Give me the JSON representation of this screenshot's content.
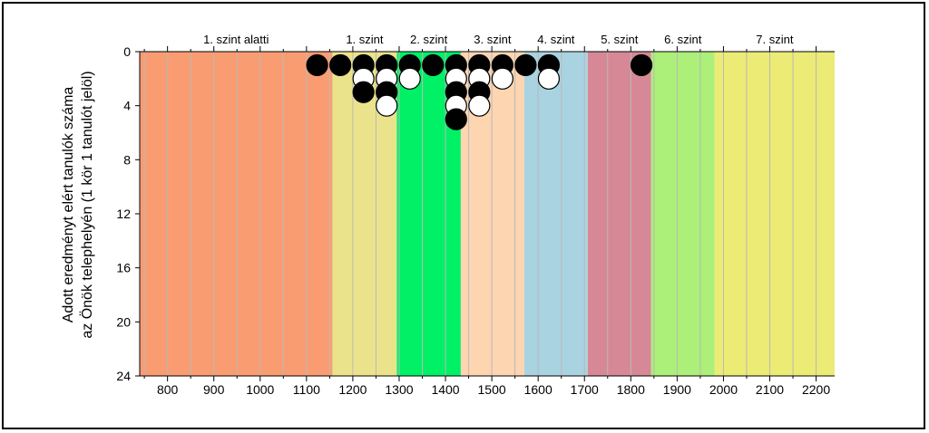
{
  "chart_data": {
    "type": "scatter",
    "xlim": [
      740,
      2240
    ],
    "ylim": [
      0,
      24
    ],
    "y_inverted": true,
    "ylabel_lines": [
      "Adott eredményt elért tanulók száma",
      "az Önök telephelyén (1 kör 1 tanulót jelöl)"
    ],
    "x_ticks": [
      800,
      900,
      1000,
      1100,
      1200,
      1300,
      1400,
      1500,
      1600,
      1700,
      1800,
      1900,
      2000,
      2100,
      2200
    ],
    "y_ticks": [
      0,
      4,
      8,
      12,
      16,
      20,
      24
    ],
    "x_minor_step": 50,
    "grid": true,
    "levels": [
      {
        "name": "1. szint alatti",
        "from": 740,
        "to": 1156,
        "color": "#fa9c72"
      },
      {
        "name": "1. szint",
        "from": 1156,
        "to": 1295,
        "color": "#ebe28c"
      },
      {
        "name": "2. szint",
        "from": 1295,
        "to": 1433,
        "color": "#00f066"
      },
      {
        "name": "3. szint",
        "from": 1433,
        "to": 1570,
        "color": "#fdd5b1"
      },
      {
        "name": "4. szint",
        "from": 1570,
        "to": 1707,
        "color": "#a9d3e1"
      },
      {
        "name": "5. szint",
        "from": 1707,
        "to": 1844,
        "color": "#d78896"
      },
      {
        "name": "6. szint",
        "from": 1844,
        "to": 1981,
        "color": "#acef79"
      },
      {
        "name": "7. szint",
        "from": 1981,
        "to": 2240,
        "color": "#ebeb76"
      }
    ],
    "points": [
      {
        "x": 1123,
        "y": 1,
        "fill": "black"
      },
      {
        "x": 1173,
        "y": 1,
        "fill": "black"
      },
      {
        "x": 1223,
        "y": 1,
        "fill": "black"
      },
      {
        "x": 1223,
        "y": 2,
        "fill": "white"
      },
      {
        "x": 1223,
        "y": 3,
        "fill": "black"
      },
      {
        "x": 1273,
        "y": 1,
        "fill": "black"
      },
      {
        "x": 1273,
        "y": 2,
        "fill": "white"
      },
      {
        "x": 1273,
        "y": 3,
        "fill": "black"
      },
      {
        "x": 1273,
        "y": 4,
        "fill": "white"
      },
      {
        "x": 1323,
        "y": 1,
        "fill": "black"
      },
      {
        "x": 1323,
        "y": 2,
        "fill": "white"
      },
      {
        "x": 1373,
        "y": 1,
        "fill": "black"
      },
      {
        "x": 1423,
        "y": 1,
        "fill": "black"
      },
      {
        "x": 1423,
        "y": 2,
        "fill": "white"
      },
      {
        "x": 1423,
        "y": 3,
        "fill": "black"
      },
      {
        "x": 1423,
        "y": 4,
        "fill": "white"
      },
      {
        "x": 1423,
        "y": 5,
        "fill": "black"
      },
      {
        "x": 1473,
        "y": 1,
        "fill": "black"
      },
      {
        "x": 1473,
        "y": 2,
        "fill": "white"
      },
      {
        "x": 1473,
        "y": 3,
        "fill": "black"
      },
      {
        "x": 1473,
        "y": 4,
        "fill": "white"
      },
      {
        "x": 1523,
        "y": 1,
        "fill": "black"
      },
      {
        "x": 1523,
        "y": 2,
        "fill": "white"
      },
      {
        "x": 1573,
        "y": 1,
        "fill": "black"
      },
      {
        "x": 1623,
        "y": 1,
        "fill": "black"
      },
      {
        "x": 1623,
        "y": 2,
        "fill": "white"
      },
      {
        "x": 1823,
        "y": 1,
        "fill": "black"
      }
    ]
  }
}
